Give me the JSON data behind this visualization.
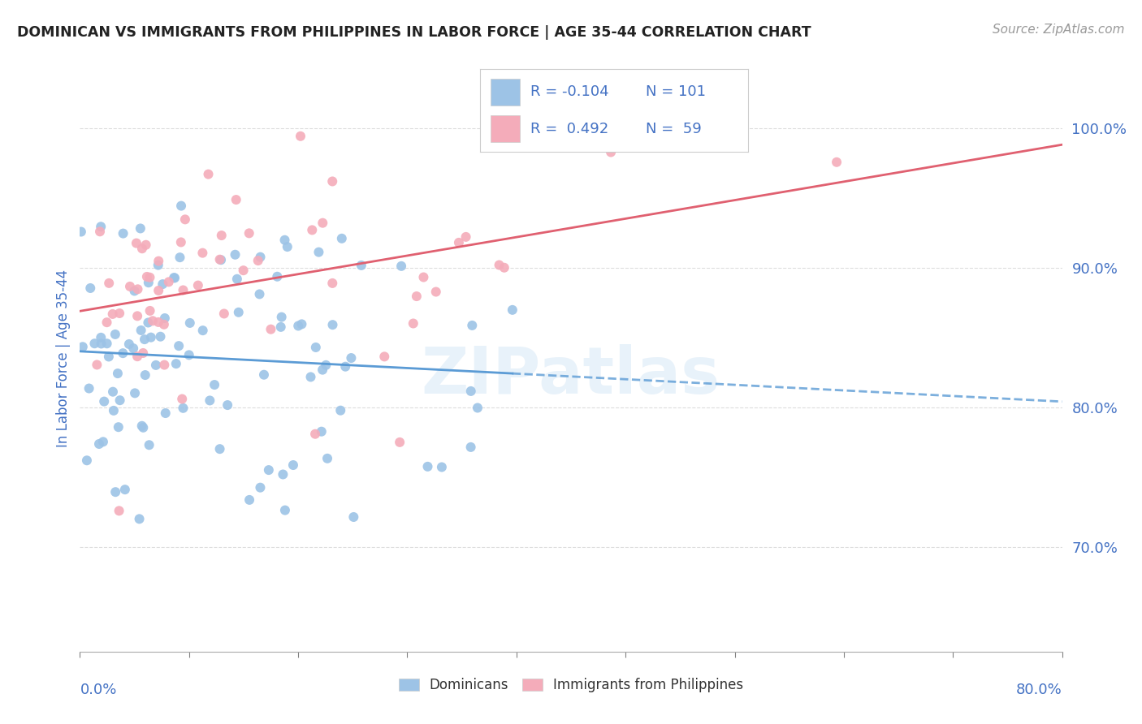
{
  "title": "DOMINICAN VS IMMIGRANTS FROM PHILIPPINES IN LABOR FORCE | AGE 35-44 CORRELATION CHART",
  "source": "Source: ZipAtlas.com",
  "ylabel": "In Labor Force | Age 35-44",
  "xlim": [
    0.0,
    0.8
  ],
  "ylim": [
    0.625,
    1.045
  ],
  "color_blue": "#9DC3E6",
  "color_pink": "#F4ACBA",
  "color_line_blue": "#5B9BD5",
  "color_line_pink": "#E06070",
  "color_text_blue": "#4472C4",
  "color_text_axis": "#4472C4",
  "watermark": "ZIPatlas",
  "R_blue": -0.104,
  "N_blue": 101,
  "R_pink": 0.492,
  "N_pink": 59,
  "label_blue": "Dominicans",
  "label_pink": "Immigrants from Philippines"
}
